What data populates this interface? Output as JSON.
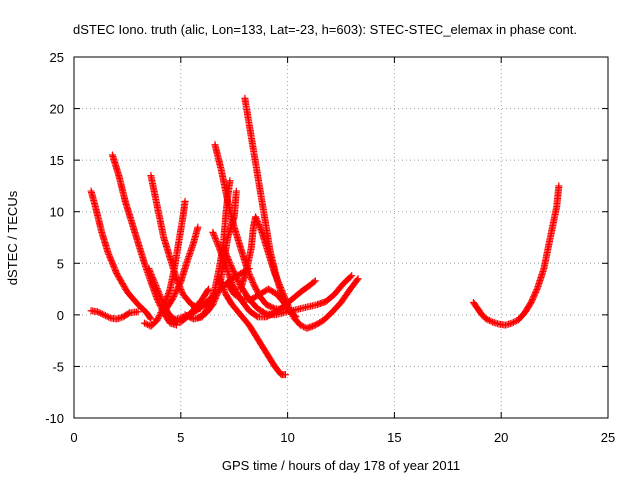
{
  "chart_data": {
    "type": "scatter",
    "title": "dSTEC Iono. truth (alic, Lon=133, Lat=-23, h=603): STEC-STEC_elemax in phase cont.",
    "xlabel": "GPS time / hours of day 178 of year 2011",
    "ylabel": "dSTEC  / TECUs",
    "xlim": [
      0,
      25
    ],
    "ylim": [
      -10,
      25
    ],
    "xticks": [
      0,
      5,
      10,
      15,
      20,
      25
    ],
    "yticks": [
      -10,
      -5,
      0,
      5,
      10,
      15,
      20,
      25
    ],
    "grid": true,
    "marker": "plus",
    "color": "#ff0000",
    "series": [
      {
        "points": [
          [
            0.8,
            12.0
          ],
          [
            1.0,
            10.5
          ],
          [
            1.3,
            8.0
          ],
          [
            1.6,
            6.0
          ],
          [
            2.0,
            4.0
          ],
          [
            2.5,
            2.2
          ],
          [
            3.0,
            1.0
          ],
          [
            3.4,
            0.2
          ],
          [
            3.6,
            -0.4
          ]
        ]
      },
      {
        "points": [
          [
            0.8,
            0.4
          ],
          [
            1.1,
            0.3
          ],
          [
            1.4,
            0.0
          ],
          [
            1.7,
            -0.3
          ],
          [
            2.0,
            -0.4
          ],
          [
            2.3,
            -0.2
          ],
          [
            2.6,
            0.2
          ],
          [
            3.0,
            0.3
          ]
        ]
      },
      {
        "points": [
          [
            1.8,
            15.5
          ],
          [
            2.1,
            13.5
          ],
          [
            2.4,
            11.0
          ],
          [
            2.7,
            9.0
          ],
          [
            3.0,
            7.0
          ],
          [
            3.3,
            5.0
          ],
          [
            3.6,
            3.2
          ],
          [
            3.9,
            1.5
          ],
          [
            4.2,
            0.2
          ],
          [
            4.5,
            -0.8
          ],
          [
            4.8,
            -1.0
          ]
        ]
      },
      {
        "points": [
          [
            3.3,
            -0.8
          ],
          [
            3.6,
            -1.1
          ],
          [
            3.9,
            -0.5
          ],
          [
            4.2,
            0.8
          ],
          [
            4.5,
            2.5
          ],
          [
            4.7,
            4.5
          ],
          [
            4.9,
            7.0
          ],
          [
            5.1,
            9.5
          ],
          [
            5.2,
            11.0
          ]
        ]
      },
      {
        "points": [
          [
            3.6,
            13.5
          ],
          [
            3.8,
            11.5
          ],
          [
            4.0,
            9.5
          ],
          [
            4.2,
            7.5
          ],
          [
            4.5,
            5.5
          ],
          [
            4.8,
            3.5
          ],
          [
            5.1,
            2.0
          ],
          [
            5.5,
            1.0
          ],
          [
            5.9,
            0.6
          ]
        ]
      },
      {
        "points": [
          [
            3.5,
            4.5
          ],
          [
            3.8,
            3.0
          ],
          [
            4.1,
            1.5
          ],
          [
            4.4,
            0.2
          ],
          [
            4.7,
            -0.5
          ],
          [
            5.0,
            -0.7
          ],
          [
            5.3,
            -0.2
          ],
          [
            5.6,
            0.5
          ],
          [
            6.0,
            1.5
          ],
          [
            6.3,
            2.5
          ]
        ]
      },
      {
        "points": [
          [
            4.2,
            0.2
          ],
          [
            4.6,
            1.5
          ],
          [
            5.0,
            3.2
          ],
          [
            5.3,
            5.2
          ],
          [
            5.6,
            7.0
          ],
          [
            5.8,
            8.5
          ]
        ]
      },
      {
        "points": [
          [
            6.6,
            16.5
          ],
          [
            6.9,
            14.0
          ],
          [
            7.2,
            11.0
          ],
          [
            7.5,
            8.5
          ],
          [
            7.8,
            6.5
          ],
          [
            8.1,
            4.5
          ],
          [
            8.4,
            3.0
          ],
          [
            8.7,
            1.8
          ],
          [
            9.0,
            1.0
          ],
          [
            9.4,
            0.6
          ],
          [
            9.8,
            0.5
          ]
        ]
      },
      {
        "points": [
          [
            8.0,
            21.0
          ],
          [
            8.2,
            18.5
          ],
          [
            8.4,
            16.0
          ],
          [
            8.6,
            13.5
          ],
          [
            8.8,
            11.0
          ],
          [
            9.0,
            8.5
          ],
          [
            9.2,
            6.0
          ],
          [
            9.5,
            3.5
          ],
          [
            9.8,
            1.5
          ],
          [
            10.1,
            0.3
          ],
          [
            10.4,
            -0.2
          ]
        ]
      },
      {
        "points": [
          [
            5.2,
            0.0
          ],
          [
            5.6,
            -0.4
          ],
          [
            6.0,
            -0.2
          ],
          [
            6.3,
            0.8
          ],
          [
            6.6,
            2.5
          ],
          [
            6.8,
            4.5
          ],
          [
            7.0,
            7.0
          ],
          [
            7.1,
            9.5
          ],
          [
            7.2,
            11.5
          ],
          [
            7.3,
            13.0
          ]
        ]
      },
      {
        "points": [
          [
            5.8,
            -0.3
          ],
          [
            6.2,
            0.2
          ],
          [
            6.5,
            1.0
          ],
          [
            6.8,
            2.5
          ],
          [
            7.0,
            5.0
          ],
          [
            7.2,
            7.5
          ],
          [
            7.5,
            9.5
          ],
          [
            7.6,
            12.0
          ]
        ]
      },
      {
        "points": [
          [
            6.5,
            8.0
          ],
          [
            6.8,
            6.5
          ],
          [
            7.1,
            4.8
          ],
          [
            7.4,
            3.0
          ],
          [
            7.8,
            1.5
          ],
          [
            8.2,
            0.4
          ],
          [
            8.6,
            -0.2
          ],
          [
            9.0,
            -0.2
          ],
          [
            9.4,
            0.2
          ],
          [
            9.8,
            0.8
          ],
          [
            10.2,
            1.5
          ],
          [
            10.6,
            2.2
          ],
          [
            11.0,
            2.8
          ],
          [
            11.3,
            3.3
          ]
        ]
      },
      {
        "points": [
          [
            7.0,
            6.5
          ],
          [
            7.4,
            4.5
          ],
          [
            7.8,
            2.8
          ],
          [
            8.2,
            1.5
          ],
          [
            8.6,
            0.6
          ],
          [
            9.0,
            0.1
          ],
          [
            9.4,
            0.0
          ],
          [
            9.8,
            0.2
          ],
          [
            10.2,
            0.4
          ],
          [
            10.6,
            0.6
          ],
          [
            11.0,
            0.8
          ],
          [
            11.4,
            1.0
          ],
          [
            11.8,
            1.3
          ],
          [
            12.2,
            2.0
          ],
          [
            12.6,
            3.0
          ],
          [
            13.0,
            3.8
          ]
        ]
      },
      {
        "points": [
          [
            7.2,
            3.0
          ],
          [
            7.5,
            2.0
          ],
          [
            7.9,
            1.5
          ],
          [
            8.3,
            1.5
          ],
          [
            8.7,
            2.0
          ],
          [
            9.1,
            2.5
          ],
          [
            9.5,
            2.0
          ],
          [
            9.9,
            1.0
          ]
        ]
      },
      {
        "points": [
          [
            7.8,
            2.5
          ],
          [
            8.1,
            4.5
          ],
          [
            8.3,
            6.5
          ],
          [
            8.4,
            8.5
          ],
          [
            8.5,
            9.5
          ],
          [
            8.8,
            8.0
          ],
          [
            9.1,
            6.0
          ],
          [
            9.4,
            4.0
          ],
          [
            9.7,
            2.5
          ],
          [
            10.0,
            1.0
          ],
          [
            10.3,
            -0.3
          ],
          [
            10.6,
            -1.0
          ],
          [
            10.9,
            -1.3
          ],
          [
            11.3,
            -1.0
          ],
          [
            11.7,
            -0.5
          ],
          [
            12.1,
            0.3
          ],
          [
            12.5,
            1.2
          ],
          [
            12.9,
            2.4
          ],
          [
            13.3,
            3.5
          ]
        ]
      },
      {
        "points": [
          [
            6.8,
            3.5
          ],
          [
            7.1,
            2.0
          ],
          [
            7.4,
            1.0
          ],
          [
            7.8,
            0.0
          ],
          [
            8.2,
            -1.0
          ],
          [
            8.5,
            -2.0
          ],
          [
            8.8,
            -3.0
          ],
          [
            9.1,
            -4.0
          ],
          [
            9.4,
            -5.0
          ],
          [
            9.7,
            -5.8
          ],
          [
            9.9,
            -5.8
          ]
        ]
      },
      {
        "points": [
          [
            4.6,
            -0.5
          ],
          [
            5.0,
            -0.3
          ],
          [
            5.4,
            0.0
          ],
          [
            5.8,
            0.5
          ],
          [
            6.2,
            1.2
          ],
          [
            6.6,
            2.0
          ],
          [
            7.0,
            2.8
          ],
          [
            7.4,
            3.5
          ],
          [
            7.8,
            4.0
          ],
          [
            8.2,
            4.5
          ]
        ]
      },
      {
        "points": [
          [
            18.7,
            1.2
          ],
          [
            18.9,
            0.6
          ],
          [
            19.1,
            0.0
          ],
          [
            19.3,
            -0.4
          ],
          [
            19.6,
            -0.7
          ],
          [
            19.9,
            -0.9
          ],
          [
            20.2,
            -1.0
          ],
          [
            20.5,
            -0.8
          ],
          [
            20.8,
            -0.5
          ],
          [
            21.1,
            0.2
          ],
          [
            21.4,
            1.2
          ],
          [
            21.7,
            2.6
          ],
          [
            22.0,
            4.5
          ],
          [
            22.2,
            6.5
          ],
          [
            22.4,
            8.5
          ],
          [
            22.6,
            10.5
          ],
          [
            22.7,
            12.5
          ]
        ]
      }
    ]
  }
}
